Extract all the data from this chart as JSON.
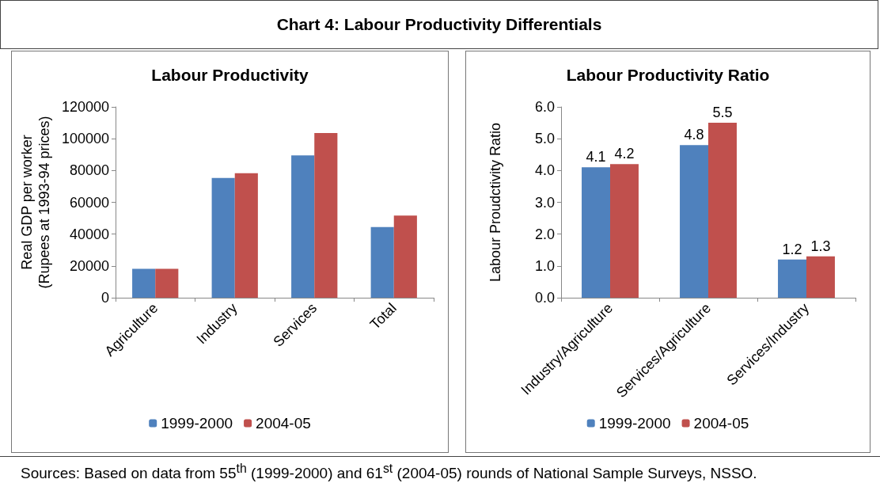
{
  "chart_data": [
    {
      "type": "bar",
      "title": "Labour Productivity",
      "ylabel": "Real GDP per worker\n(Rupees at 1993-94 prices)",
      "categories": [
        "Agriculture",
        "Industry",
        "Services",
        "Total"
      ],
      "series": [
        {
          "name": "1999-2000",
          "color": "#4f81bd",
          "values": [
            18200,
            75300,
            89500,
            44500
          ]
        },
        {
          "name": "2004-05",
          "color": "#c0504d",
          "values": [
            18200,
            78300,
            103600,
            51700
          ]
        }
      ],
      "ylim": [
        0,
        120000
      ],
      "yticks": [
        0,
        20000,
        40000,
        60000,
        80000,
        100000,
        120000
      ],
      "grid": false,
      "legend": "bottom",
      "annotations": [
        "Chart 4: Labour Productivity Differentials"
      ]
    },
    {
      "type": "bar",
      "title": "Labour Productivity Ratio",
      "ylabel": "Labour Proudctivity Ratio",
      "categories": [
        "Industry/Agriculture",
        "Services/Agriculture",
        "Services/Industry"
      ],
      "series": [
        {
          "name": "1999-2000",
          "color": "#4f81bd",
          "values": [
            4.1,
            4.8,
            1.2
          ]
        },
        {
          "name": "2004-05",
          "color": "#c0504d",
          "values": [
            4.2,
            5.5,
            1.3
          ]
        }
      ],
      "ylim": [
        0,
        6
      ],
      "yticks": [
        {
          "value": 0,
          "label": "0.0"
        },
        {
          "value": 1,
          "label": "1.0"
        },
        {
          "value": 2,
          "label": "2.0"
        },
        {
          "value": 3,
          "label": "3.0"
        },
        {
          "value": 4,
          "label": "4.0"
        },
        {
          "value": 5,
          "label": "5.0"
        },
        {
          "value": 6,
          "label": "6.0"
        }
      ],
      "grid": false,
      "legend": "bottom",
      "data_labels": true,
      "annotations": [
        "Sources: Based on data from 55$^{th}$ (1999-2000) and 61$^{st}$ (2004-05) rounds of National Sample Surveys, NSSO."
      ]
    }
  ]
}
